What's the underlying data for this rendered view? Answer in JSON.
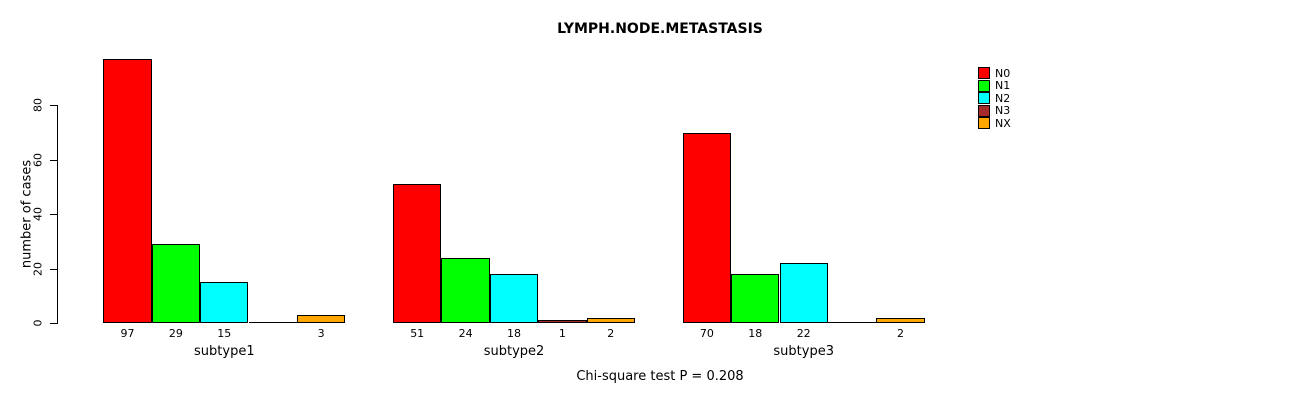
{
  "chart_data": {
    "type": "bar",
    "title": "LYMPH.NODE.METASTASIS",
    "ylabel": "number of cases",
    "xlabel": "",
    "categories": [
      "subtype1",
      "subtype2",
      "subtype3"
    ],
    "series": [
      {
        "name": "N0",
        "color": "#FF0000",
        "values": [
          97,
          51,
          70
        ]
      },
      {
        "name": "N1",
        "color": "#00FF00",
        "values": [
          29,
          24,
          18
        ]
      },
      {
        "name": "N2",
        "color": "#00FFFF",
        "values": [
          15,
          18,
          22
        ]
      },
      {
        "name": "N3",
        "color": "#A52A2A",
        "values": [
          0,
          1,
          0
        ]
      },
      {
        "name": "NX",
        "color": "#FFA500",
        "values": [
          3,
          2,
          2
        ]
      }
    ],
    "bar_value_labels": {
      "subtype1": [
        "97",
        "29",
        "15",
        "",
        "3"
      ],
      "subtype2": [
        "51",
        "24",
        "18",
        "1",
        "2"
      ],
      "subtype3": [
        "70",
        "18",
        "22",
        "",
        "2"
      ]
    },
    "yticks": [
      0,
      20,
      40,
      60,
      80
    ],
    "ylim": [
      0,
      97
    ],
    "grid": false,
    "legend_position": "top-right",
    "legend_entries": [
      "N0",
      "N1",
      "N2",
      "N3",
      "NX"
    ],
    "annotation": "Chi-square test P = 0.208",
    "background": "#FFFFFF",
    "axis_color": "#000000"
  }
}
